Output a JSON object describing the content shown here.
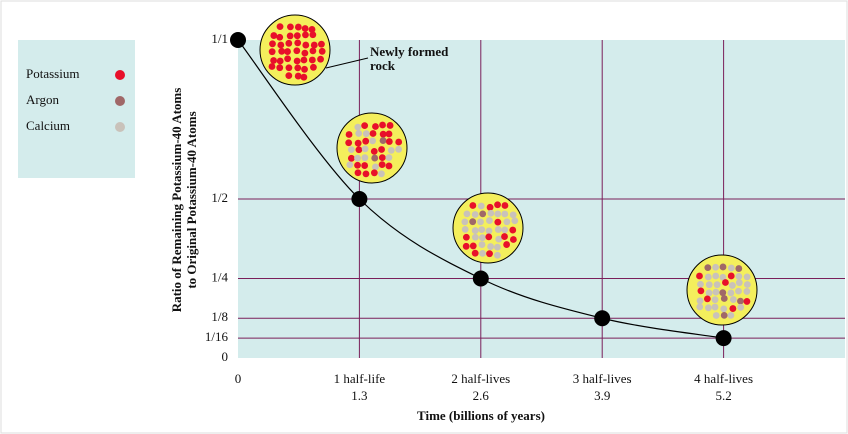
{
  "chart_data": {
    "type": "line",
    "x": [
      0,
      1.3,
      2.6,
      3.9,
      5.2
    ],
    "values": [
      1,
      0.5,
      0.25,
      0.125,
      0.0625
    ],
    "color": "#000000",
    "xlim": [
      0,
      6.5
    ],
    "ylim": [
      0,
      1
    ],
    "xticks": [
      0,
      {
        "value": 1.3,
        "label": "1 half-life"
      },
      {
        "value": 2.6,
        "label": "2 half-lives"
      },
      {
        "value": 3.9,
        "label": "3 half-lives"
      },
      {
        "value": 5.2,
        "label": "4 half-lives"
      }
    ],
    "yticks": [
      0,
      {
        "value": 0.0625,
        "label": "1/16"
      },
      {
        "value": 0.125,
        "label": "1/8"
      },
      {
        "value": 0.25,
        "label": "1/4"
      },
      {
        "value": 0.5,
        "label": "1/2"
      },
      {
        "value": 1,
        "label": "1/1"
      }
    ],
    "grid": true,
    "grid_color": "#7a1f5a",
    "background": "#d4ecec",
    "x_label": "Time (billions of years)",
    "y_label": [
      "Ratio of Remaining Potassium-40 Atoms",
      "to Original Potassium-40 Atoms"
    ],
    "annotation": [
      "Newly formed",
      "rock"
    ],
    "legend": [
      {
        "name": "Potassium",
        "color": "#e8102a"
      },
      {
        "name": "Argon",
        "color": "#a06868"
      },
      {
        "name": "Calcium",
        "color": "#c9c2ba"
      }
    ]
  }
}
